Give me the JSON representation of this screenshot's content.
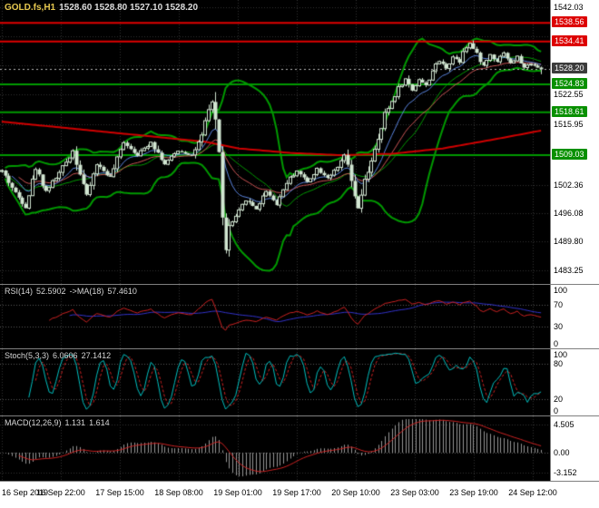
{
  "header": {
    "symbol_timeframe": "GOLD.fs,H1",
    "ohlc_text": "1528.60 1528.80 1527.10 1528.20"
  },
  "colors": {
    "background": "#000000",
    "axis_bg": "#ffffff",
    "axis_text": "#000000",
    "grid": "#333333",
    "candle": "#d2e6d2",
    "bollinger": "#009a00",
    "level_red": "#e00000",
    "level_green": "#009a00",
    "long_ma": "#d00000",
    "ma_fast": "#5b85e0",
    "ma_mid": "#cc5555",
    "rsi_line": "#cc2222",
    "rsi_ma": "#3333cc",
    "stoch_main": "#00bfbf",
    "stoch_signal": "#cc2222",
    "macd_hist": "#979797",
    "macd_signal": "#cc2222",
    "badge_red": "#dd0000",
    "badge_green": "#089000",
    "badge_current": "#3c3c3c",
    "current_price_line": "#bbbbbb",
    "panel_border": "#7f7f7f",
    "title_symbol": "#e6c84f",
    "title_values": "#dddddd",
    "ind_label": "#d6d6d6",
    "ind_level_line": "#5a5a5a"
  },
  "chart_data": {
    "type": "candlestick+indicators",
    "symbol": "GOLD.fs",
    "timeframe": "H1",
    "last_ohlc": {
      "open": 1528.6,
      "high": 1528.8,
      "low": 1527.1,
      "close": 1528.2
    },
    "bars": 160,
    "price_axis": {
      "range": [
        1480.2,
        1543.7
      ],
      "ticks": [
        1542.03,
        1522.55,
        1515.95,
        1502.36,
        1496.08,
        1489.8,
        1483.25
      ],
      "grid_prices": [
        1542.03,
        1535.54,
        1529.04,
        1522.55,
        1515.95,
        1509.16,
        1502.36,
        1496.08,
        1489.8,
        1483.25
      ]
    },
    "time_axis_labels": [
      "16 Sep 2019",
      "16 Sep 22:00",
      "17 Sep 15:00",
      "18 Sep 08:00",
      "19 Sep 01:00",
      "19 Sep 17:00",
      "20 Sep 10:00",
      "23 Sep 03:00",
      "23 Sep 19:00",
      "24 Sep 12:00"
    ],
    "horizontal_levels": [
      {
        "price": 1538.56,
        "kind": "resistance",
        "color_key": "level_red"
      },
      {
        "price": 1534.41,
        "kind": "resistance",
        "color_key": "level_red"
      },
      {
        "price": 1524.83,
        "kind": "support",
        "color_key": "level_green"
      },
      {
        "price": 1518.61,
        "kind": "support",
        "color_key": "level_green"
      },
      {
        "price": 1509.03,
        "kind": "support",
        "color_key": "level_green"
      }
    ],
    "current_price": 1528.2,
    "price_badges": [
      {
        "label": "1538.56",
        "price": 1538.56,
        "type": "red"
      },
      {
        "label": "1534.41",
        "price": 1534.41,
        "type": "red"
      },
      {
        "label": "1528.20",
        "price": 1528.2,
        "type": "current"
      },
      {
        "label": "1524.83",
        "price": 1524.83,
        "type": "green"
      },
      {
        "label": "1518.61",
        "price": 1518.61,
        "type": "green"
      },
      {
        "label": "1509.03",
        "price": 1509.03,
        "type": "green"
      }
    ],
    "price_path": [
      [
        0,
        1505.5
      ],
      [
        4,
        1500.5
      ],
      [
        7,
        1497.5
      ],
      [
        10,
        1506
      ],
      [
        13,
        1501
      ],
      [
        17,
        1505
      ],
      [
        21,
        1510
      ],
      [
        25,
        1500
      ],
      [
        28,
        1507
      ],
      [
        32,
        1504
      ],
      [
        36,
        1512
      ],
      [
        40,
        1509
      ],
      [
        44,
        1512
      ],
      [
        48,
        1507
      ],
      [
        52,
        1510
      ],
      [
        56,
        1509
      ],
      [
        59,
        1513
      ],
      [
        61,
        1519
      ],
      [
        62,
        1521
      ],
      [
        63,
        1517
      ],
      [
        64,
        1509
      ],
      [
        65,
        1496
      ],
      [
        66,
        1487.5
      ],
      [
        67,
        1493
      ],
      [
        69,
        1495
      ],
      [
        72,
        1499
      ],
      [
        75,
        1497
      ],
      [
        78,
        1501
      ],
      [
        81,
        1498
      ],
      [
        84,
        1503
      ],
      [
        87,
        1505.5
      ],
      [
        90,
        1503
      ],
      [
        93,
        1506
      ],
      [
        96,
        1504
      ],
      [
        99,
        1506
      ],
      [
        101,
        1509
      ],
      [
        103,
        1503
      ],
      [
        105,
        1497
      ],
      [
        107,
        1503
      ],
      [
        109,
        1508
      ],
      [
        111,
        1512
      ],
      [
        113,
        1518
      ],
      [
        115,
        1521
      ],
      [
        117,
        1524
      ],
      [
        119,
        1526
      ],
      [
        121,
        1523.5
      ],
      [
        123,
        1526
      ],
      [
        125,
        1524.5
      ],
      [
        127,
        1528
      ],
      [
        129,
        1530
      ],
      [
        131,
        1528.5
      ],
      [
        133,
        1531
      ],
      [
        135,
        1530
      ],
      [
        136,
        1532.5
      ],
      [
        138,
        1534
      ],
      [
        140,
        1531.5
      ],
      [
        142,
        1529
      ],
      [
        144,
        1531.5
      ],
      [
        146,
        1530
      ],
      [
        148,
        1532
      ],
      [
        150,
        1529.5
      ],
      [
        152,
        1531
      ],
      [
        154,
        1528.5
      ],
      [
        156,
        1529.5
      ],
      [
        158,
        1528.6
      ],
      [
        159,
        1528.2
      ]
    ],
    "long_ma_path": [
      [
        0,
        1516.5
      ],
      [
        20,
        1515
      ],
      [
        40,
        1513.5
      ],
      [
        60,
        1512
      ],
      [
        70,
        1510.5
      ],
      [
        85,
        1509.5
      ],
      [
        100,
        1509
      ],
      [
        115,
        1509.3
      ],
      [
        130,
        1510.5
      ],
      [
        145,
        1512.5
      ],
      [
        159,
        1514.5
      ]
    ],
    "indicators": {
      "bollinger": {
        "period": 20,
        "deviation": 2
      },
      "ma_fast_period": 10,
      "ma_mid_period": 21,
      "rsi": {
        "label": "RSI(14)",
        "value": "52.5902",
        "ma_label": "->MA(18)",
        "ma_value": "57.4610",
        "period": 14,
        "ma_period": 18,
        "ticks": [
          "100",
          "70",
          "30",
          "0"
        ],
        "levels": [
          70,
          30
        ]
      },
      "stochastic": {
        "label": "Stoch(5,3,3)",
        "value": "6.0606",
        "value2": "27.1412",
        "k": 5,
        "slowing": 3,
        "d": 3,
        "ticks": [
          "100",
          "80",
          "20",
          "0"
        ],
        "levels": [
          80,
          20
        ]
      },
      "macd": {
        "label": "MACD(12,26,9)",
        "value": "1.131",
        "value2": "1.614",
        "fast": 12,
        "slow": 26,
        "signal": 9,
        "ticks": [
          {
            "label": "4.505",
            "v": 4.505
          },
          {
            "label": "0.00",
            "v": 0
          },
          {
            "label": "-3.152",
            "v": -3.152
          }
        ],
        "range": [
          -4.0,
          5.3
        ]
      }
    }
  }
}
